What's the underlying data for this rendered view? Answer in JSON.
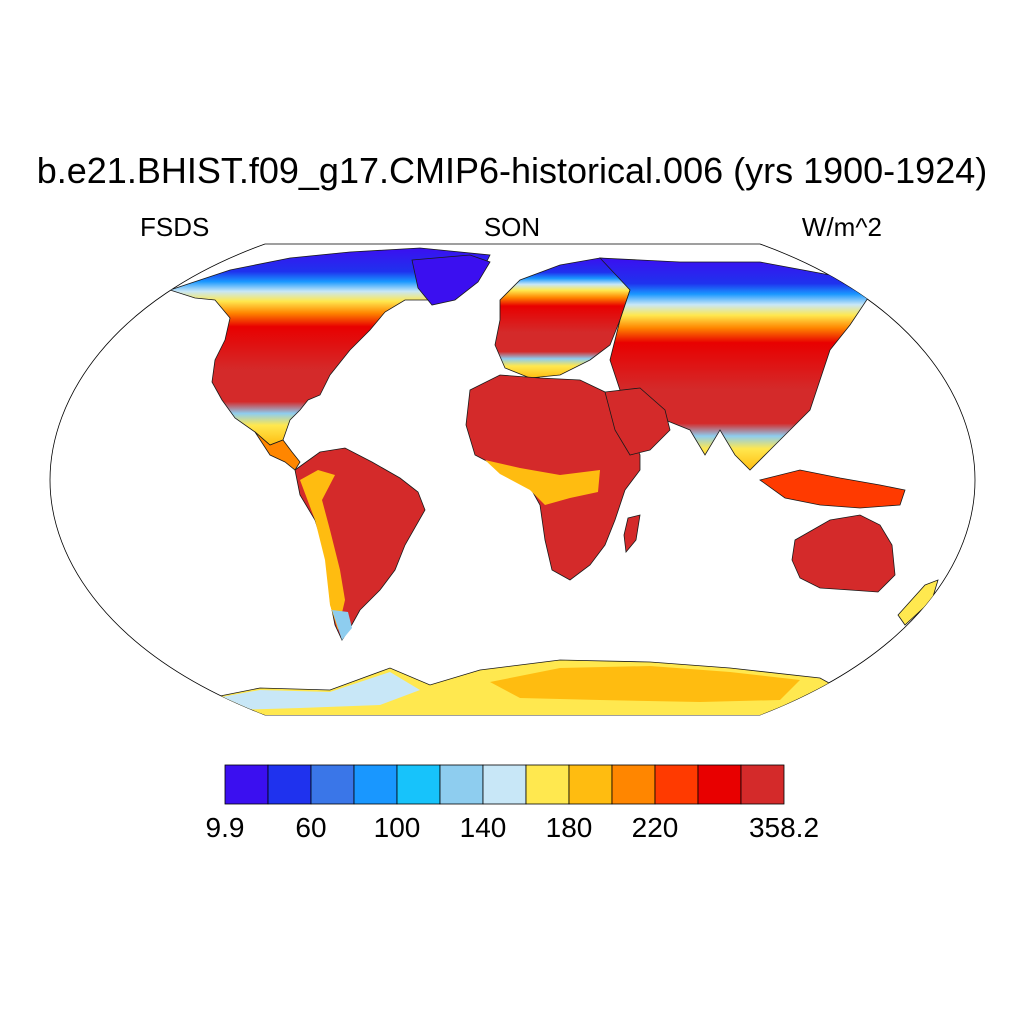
{
  "plot": {
    "title": "b.e21.BHIST.f09_g17.CMIP6-historical.006 (yrs 1900-1924)",
    "left_label": "FSDS",
    "center_label": "SON",
    "right_label": "W/m^2"
  },
  "colorbar": {
    "colors": [
      "#3b0ff0",
      "#1f32ee",
      "#3a76e8",
      "#1997ff",
      "#17c3fb",
      "#8ecdef",
      "#c8e7f7",
      "#ffe84f",
      "#ffbc10",
      "#ff8600",
      "#ff3a00",
      "#e80000",
      "#d42a2a"
    ],
    "tick_labels": [
      "9.9",
      "60",
      "100",
      "140",
      "180",
      "220",
      "358.2"
    ],
    "tick_boundaries": [
      0,
      2,
      4,
      6,
      8,
      10,
      13
    ]
  }
}
